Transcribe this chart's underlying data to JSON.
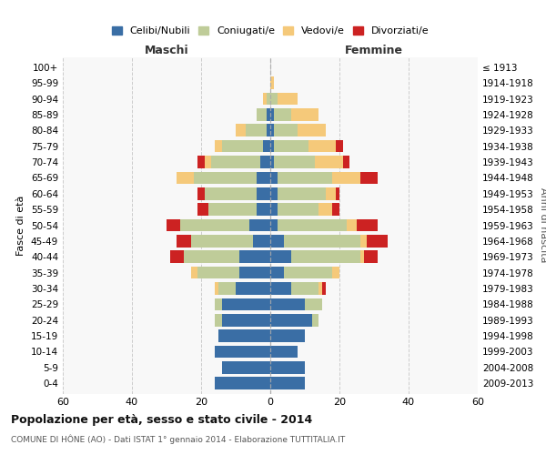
{
  "age_groups": [
    "0-4",
    "5-9",
    "10-14",
    "15-19",
    "20-24",
    "25-29",
    "30-34",
    "35-39",
    "40-44",
    "45-49",
    "50-54",
    "55-59",
    "60-64",
    "65-69",
    "70-74",
    "75-79",
    "80-84",
    "85-89",
    "90-94",
    "95-99",
    "100+"
  ],
  "birth_years": [
    "2009-2013",
    "2004-2008",
    "1999-2003",
    "1994-1998",
    "1989-1993",
    "1984-1988",
    "1979-1983",
    "1974-1978",
    "1969-1973",
    "1964-1968",
    "1959-1963",
    "1954-1958",
    "1949-1953",
    "1944-1948",
    "1939-1943",
    "1934-1938",
    "1929-1933",
    "1924-1928",
    "1919-1923",
    "1914-1918",
    "≤ 1913"
  ],
  "male": {
    "celibi": [
      16,
      14,
      16,
      15,
      14,
      14,
      10,
      9,
      9,
      5,
      6,
      4,
      4,
      4,
      3,
      2,
      1,
      1,
      0,
      0,
      0
    ],
    "coniugati": [
      0,
      0,
      0,
      0,
      2,
      2,
      5,
      12,
      16,
      18,
      20,
      14,
      15,
      18,
      14,
      12,
      6,
      3,
      1,
      0,
      0
    ],
    "vedovi": [
      0,
      0,
      0,
      0,
      0,
      0,
      1,
      2,
      0,
      0,
      0,
      0,
      0,
      5,
      2,
      2,
      3,
      0,
      1,
      0,
      0
    ],
    "divorziati": [
      0,
      0,
      0,
      0,
      0,
      0,
      0,
      0,
      4,
      4,
      4,
      3,
      2,
      0,
      2,
      0,
      0,
      0,
      0,
      0,
      0
    ]
  },
  "female": {
    "nubili": [
      10,
      10,
      8,
      10,
      12,
      10,
      6,
      4,
      6,
      4,
      2,
      2,
      2,
      2,
      1,
      1,
      1,
      1,
      0,
      0,
      0
    ],
    "coniugate": [
      0,
      0,
      0,
      0,
      2,
      5,
      8,
      14,
      20,
      22,
      20,
      12,
      14,
      16,
      12,
      10,
      7,
      5,
      2,
      0,
      0
    ],
    "vedove": [
      0,
      0,
      0,
      0,
      0,
      0,
      1,
      2,
      1,
      2,
      3,
      4,
      3,
      8,
      8,
      8,
      8,
      8,
      6,
      1,
      0
    ],
    "divorziate": [
      0,
      0,
      0,
      0,
      0,
      0,
      1,
      0,
      4,
      6,
      6,
      2,
      1,
      5,
      2,
      2,
      0,
      0,
      0,
      0,
      0
    ]
  },
  "colors": {
    "celibi": "#3A6EA5",
    "coniugati": "#BFCC99",
    "vedovi": "#F5C97A",
    "divorziati": "#CC2222"
  },
  "xlim": 60,
  "title": "Popolazione per età, sesso e stato civile - 2014",
  "subtitle": "COMUNE DI HÔNE (AO) - Dati ISTAT 1° gennaio 2014 - Elaborazione TUTTITALIA.IT",
  "ylabel": "Fasce di età",
  "ylabel_right": "Anni di nascita",
  "legend_labels": [
    "Celibi/Nubili",
    "Coniugati/e",
    "Vedovi/e",
    "Divorziati/e"
  ]
}
